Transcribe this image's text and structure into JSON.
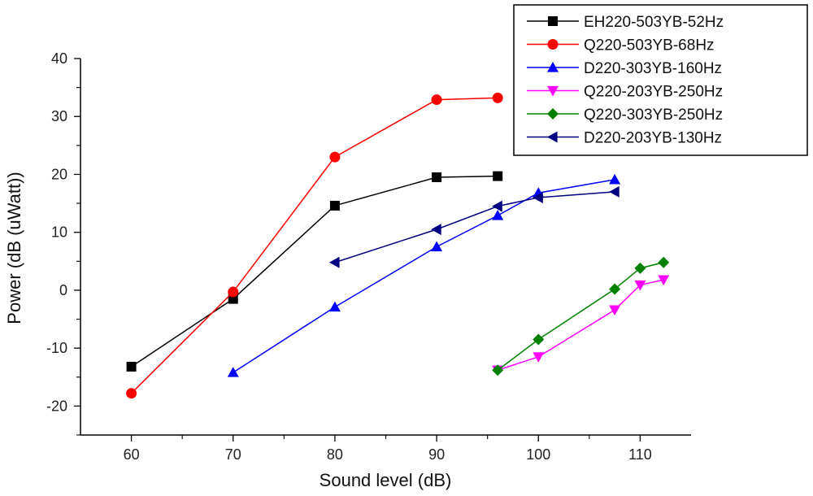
{
  "chart_data": {
    "type": "line",
    "title": "",
    "xlabel": "Sound level (dB)",
    "ylabel": "Power (dB (uWatt))",
    "xlim": [
      55,
      115
    ],
    "ylim": [
      -25,
      40
    ],
    "xticks": [
      60,
      70,
      80,
      90,
      100,
      110
    ],
    "yticks": [
      -20,
      -10,
      0,
      10,
      20,
      30,
      40
    ],
    "grid": false,
    "legend_position": "top-right",
    "series": [
      {
        "name": "EH220-503YB-52Hz",
        "color": "#000000",
        "marker": "square",
        "x": [
          60,
          70,
          80,
          90,
          96
        ],
        "y": [
          -13.2,
          -1.5,
          14.6,
          19.5,
          19.7
        ]
      },
      {
        "name": "Q220-503YB-68Hz",
        "color": "#ff0000",
        "marker": "circle",
        "x": [
          60,
          70,
          80,
          90,
          96
        ],
        "y": [
          -17.8,
          -0.3,
          23.0,
          32.9,
          33.2
        ]
      },
      {
        "name": "D220-303YB-160Hz",
        "color": "#0000ff",
        "marker": "triangle-up",
        "x": [
          70,
          80,
          90,
          96,
          100,
          107.5
        ],
        "y": [
          -14.2,
          -2.9,
          7.5,
          12.9,
          16.8,
          19.1
        ]
      },
      {
        "name": "Q220-203YB-250Hz",
        "color": "#ff00ff",
        "marker": "triangle-down",
        "x": [
          96,
          100,
          107.5,
          110,
          112.3
        ],
        "y": [
          -13.8,
          -11.5,
          -3.4,
          0.9,
          1.8
        ]
      },
      {
        "name": "Q220-303YB-250Hz",
        "color": "#008000",
        "marker": "diamond",
        "x": [
          96,
          100,
          107.5,
          110,
          112.3
        ],
        "y": [
          -13.8,
          -8.5,
          0.2,
          3.8,
          4.8
        ]
      },
      {
        "name": "D220-203YB-130Hz",
        "color": "#000080",
        "marker": "triangle-left",
        "x": [
          80,
          90,
          96,
          100,
          107.5
        ],
        "y": [
          4.8,
          10.5,
          14.5,
          16.0,
          17.0
        ]
      }
    ]
  }
}
